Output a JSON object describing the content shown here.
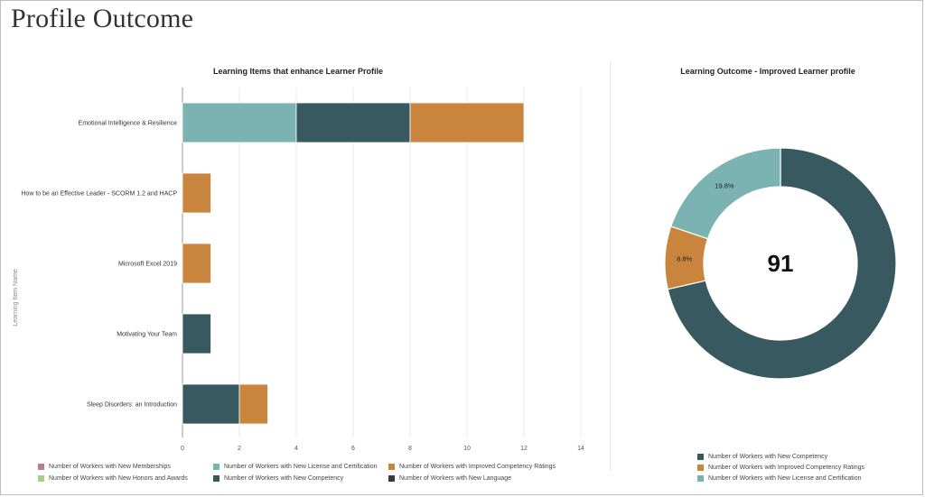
{
  "page": {
    "title": "Profile Outcome"
  },
  "colors": {
    "teal": "#7bb3b2",
    "dark_teal": "#37595f",
    "orange": "#c9843d",
    "pink": "#b57c9c",
    "light_green": "#a9cc8e",
    "near_black": "#3a3a3a"
  },
  "bar_chart": {
    "title": "Learning Items that enhance Learner Profile",
    "y_axis_label": "Learning Item Name",
    "legend": [
      {
        "label": "Number of Workers with New Memberships",
        "color": "#b57c9c"
      },
      {
        "label": "Number of Workers with New License and Certification",
        "color": "#7bb3b2"
      },
      {
        "label": "Number of Workers with Improved Competency Ratings",
        "color": "#c9843d"
      },
      {
        "label": "Number of Workers with New Honors and Awards",
        "color": "#a9cc8e"
      },
      {
        "label": "Number of Workers with New Competency",
        "color": "#37595f"
      },
      {
        "label": "Number of Workers with New Language",
        "color": "#3a3a3a"
      }
    ]
  },
  "donut_chart": {
    "title": "Learning Outcome - Improved Learner profile",
    "center_value": "91",
    "legend": [
      {
        "label": "Number of Workers with New Competency",
        "color": "#37595f"
      },
      {
        "label": "Number of Workers with Improved Competency Ratings",
        "color": "#c9843d"
      },
      {
        "label": "Number of Workers with New License and Certification",
        "color": "#7bb3b2"
      }
    ]
  },
  "chart_data": [
    {
      "type": "bar",
      "orientation": "horizontal",
      "stacked": true,
      "title": "Learning Items that enhance Learner Profile",
      "ylabel": "Learning Item Name",
      "xlabel": "",
      "xlim": [
        0,
        14
      ],
      "x_ticks": [
        0,
        2,
        4,
        6,
        8,
        10,
        12,
        14
      ],
      "grid": "vertical",
      "categories": [
        "Emotional Intelligence & Resilience",
        "How to be an Effective Leader - SCORM 1.2 and HACP",
        "Microsoft Excel 2019",
        "Motivating Your Team",
        "Sleep Disorders: an Introduction"
      ],
      "series": [
        {
          "name": "Number of Workers with New License and Certification",
          "color": "#7bb3b2",
          "values": [
            4,
            0,
            0,
            0,
            0
          ]
        },
        {
          "name": "Number of Workers with New Competency",
          "color": "#37595f",
          "values": [
            4,
            0,
            0,
            1,
            2
          ]
        },
        {
          "name": "Number of Workers with Improved Competency Ratings",
          "color": "#c9843d",
          "values": [
            4,
            1,
            1,
            0,
            1
          ]
        },
        {
          "name": "Number of Workers with New Memberships",
          "color": "#b57c9c",
          "values": [
            0,
            0,
            0,
            0,
            0
          ]
        },
        {
          "name": "Number of Workers with New Honors and Awards",
          "color": "#a9cc8e",
          "values": [
            0,
            0,
            0,
            0,
            0
          ]
        },
        {
          "name": "Number of Workers with New Language",
          "color": "#3a3a3a",
          "values": [
            0,
            0,
            0,
            0,
            0
          ]
        }
      ],
      "legend_position": "bottom"
    },
    {
      "type": "pie",
      "donut": true,
      "title": "Learning Outcome - Improved Learner profile",
      "center_label": "91",
      "slices": [
        {
          "name": "Number of Workers with New Competency",
          "value": 71.4,
          "label": "71.4%",
          "color": "#37595f"
        },
        {
          "name": "Number of Workers with Improved Competency Ratings",
          "value": 8.8,
          "label": "8.8%",
          "color": "#c9843d"
        },
        {
          "name": "Number of Workers with New License and Certification",
          "value": 19.8,
          "label": "19.8%",
          "color": "#7bb3b2"
        }
      ],
      "legend_position": "bottom"
    }
  ]
}
